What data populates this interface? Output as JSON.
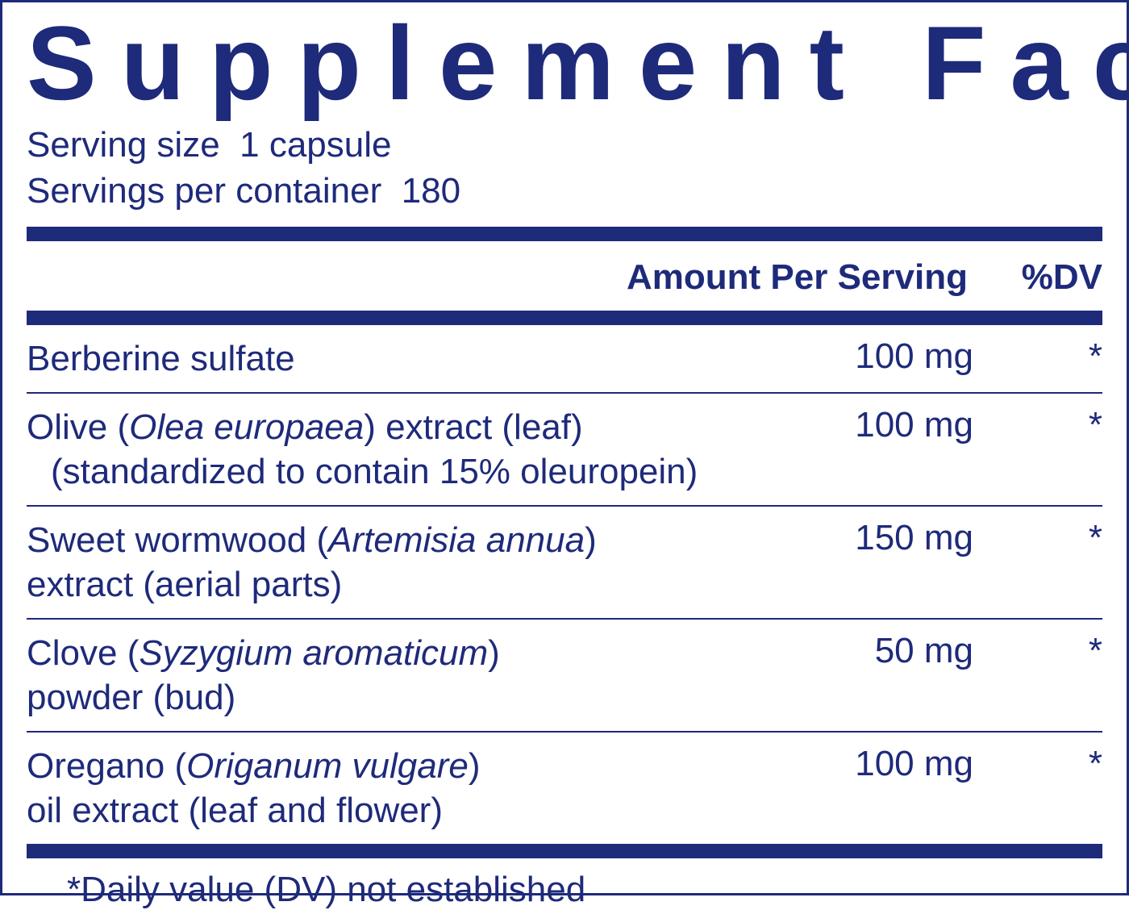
{
  "colors": {
    "primary": "#1e2a7a",
    "background": "#ffffff"
  },
  "title": "Supplement Facts",
  "serving": {
    "size_label": "Serving size",
    "size_value": "1 capsule",
    "per_container_label": "Servings per container",
    "per_container_value": "180"
  },
  "headers": {
    "amount": "Amount Per Serving",
    "dv": "%DV"
  },
  "ingredients": [
    {
      "name_html": "Berberine sulfate",
      "amount": "100 mg",
      "dv": "*"
    },
    {
      "name_html": "Olive (<span class=\"italic\">Olea europaea</span>) extract (leaf)<br><span class=\"indent\">(standardized to contain 15% oleuropein)</span>",
      "amount": "100 mg",
      "dv": "*"
    },
    {
      "name_html": "Sweet wormwood (<span class=\"italic\">Artemisia annua</span>)<br>extract (aerial parts)",
      "amount": "150 mg",
      "dv": "*"
    },
    {
      "name_html": "Clove (<span class=\"italic\">Syzygium aromaticum</span>)<br>powder (bud)",
      "amount": "50 mg",
      "dv": "*"
    },
    {
      "name_html": "Oregano (<span class=\"italic\">Origanum vulgare</span>)<br>oil extract (leaf and flower)",
      "amount": "100 mg",
      "dv": "*"
    }
  ],
  "footnote": "*Daily value (DV) not established"
}
